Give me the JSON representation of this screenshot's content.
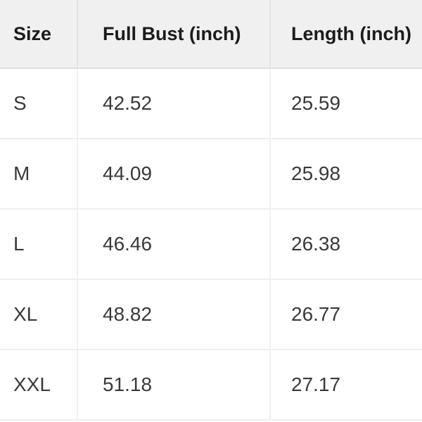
{
  "table": {
    "title": "size-chart",
    "columns": [
      {
        "label": "Size"
      },
      {
        "label": "Full Bust (inch)"
      },
      {
        "label": "Length (inch)"
      }
    ],
    "rows": [
      {
        "size": "S",
        "full_bust": "42.52",
        "length": "25.59"
      },
      {
        "size": "M",
        "full_bust": "44.09",
        "length": "25.98"
      },
      {
        "size": "L",
        "full_bust": "46.46",
        "length": "26.38"
      },
      {
        "size": "XL",
        "full_bust": "48.82",
        "length": "26.77"
      },
      {
        "size": "XXL",
        "full_bust": "51.18",
        "length": "27.17"
      }
    ]
  },
  "colors": {
    "header_bg": "#f0f0f0",
    "header_text": "#1c1c1c",
    "header_border": "#e1e1e1",
    "header_divider": "#e3e3e3",
    "body_text": "#3a3a3a",
    "row_border": "#efefef",
    "body_divider": "#f1f1f1"
  }
}
